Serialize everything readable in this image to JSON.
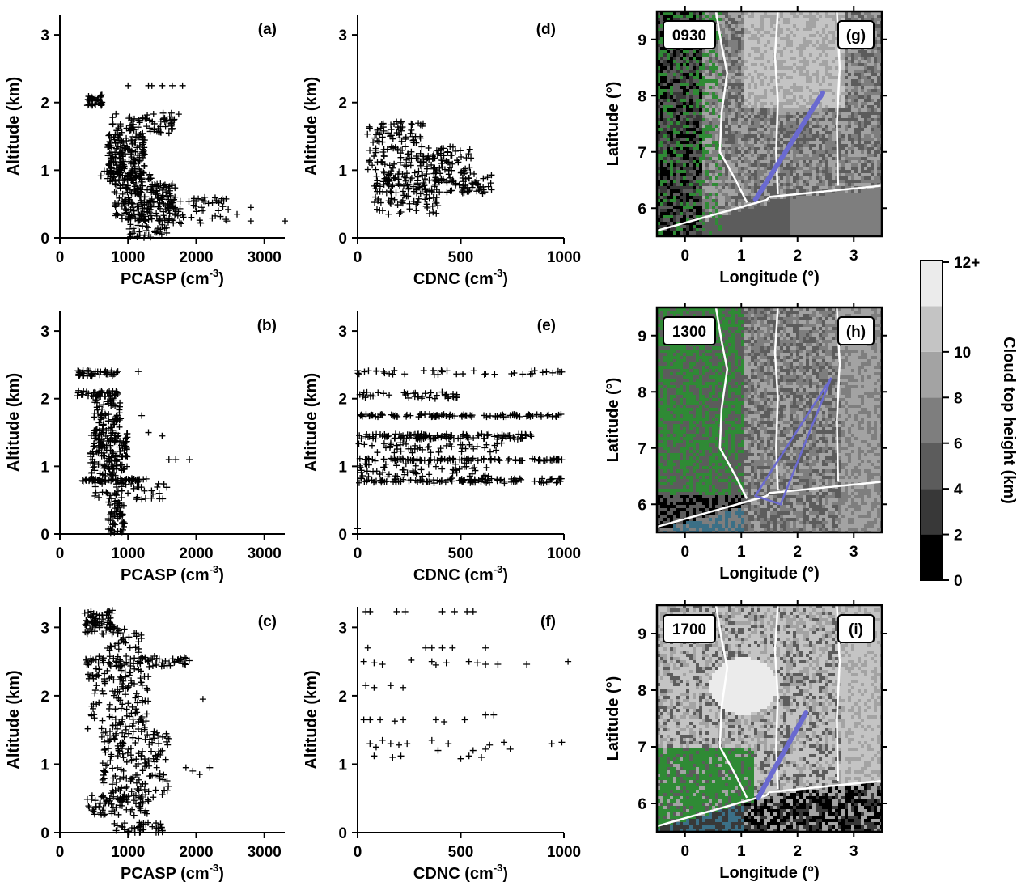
{
  "chart_data": [
    {
      "panel": "(a)",
      "type": "scatter",
      "xlabel": "PCASP (cm",
      "xlabel_sup": "-3",
      "ylabel": "Altitude (km)",
      "xlim": [
        0,
        3300
      ],
      "ylim": [
        0,
        3.3
      ],
      "xticks": [
        0,
        1000,
        2000,
        3000
      ],
      "yticks": [
        0,
        1,
        2,
        3
      ],
      "marker": "+",
      "clusters": [
        {
          "x": [
            400,
            620
          ],
          "y": [
            1.95,
            2.12
          ],
          "n": 35
        },
        {
          "x": [
            750,
            1750
          ],
          "y": [
            1.55,
            1.85
          ],
          "n": 70
        },
        {
          "x": [
            700,
            1250
          ],
          "y": [
            0.8,
            1.55
          ],
          "n": 200
        },
        {
          "x": [
            600,
            1350
          ],
          "y": [
            0.85,
            1.0
          ],
          "n": 40
        },
        {
          "x": [
            800,
            1700
          ],
          "y": [
            0.25,
            0.8
          ],
          "n": 210
        },
        {
          "x": [
            1300,
            2500
          ],
          "y": [
            0.2,
            0.6
          ],
          "n": 60
        },
        {
          "x": [
            1000,
            1600
          ],
          "y": [
            0.0,
            0.2
          ],
          "n": 35
        }
      ],
      "points": [
        {
          "x": 1000,
          "y": 2.25
        },
        {
          "x": 1300,
          "y": 2.25
        },
        {
          "x": 1350,
          "y": 2.25
        },
        {
          "x": 1500,
          "y": 2.25
        },
        {
          "x": 1650,
          "y": 2.25
        },
        {
          "x": 1800,
          "y": 2.25
        },
        {
          "x": 2800,
          "y": 0.45
        },
        {
          "x": 2800,
          "y": 0.25
        },
        {
          "x": 3300,
          "y": 0.25
        },
        {
          "x": 2450,
          "y": 0.25
        },
        {
          "x": 2600,
          "y": 0.35
        }
      ]
    },
    {
      "panel": "(b)",
      "type": "scatter",
      "xlabel": "PCASP (cm",
      "xlabel_sup": "-3",
      "ylabel": "Altitude (km)",
      "xlim": [
        0,
        3300
      ],
      "ylim": [
        0,
        3.3
      ],
      "xticks": [
        0,
        1000,
        2000,
        3000
      ],
      "yticks": [
        0,
        1,
        2,
        3
      ],
      "marker": "+",
      "clusters": [
        {
          "x": [
            250,
            850
          ],
          "y": [
            2.33,
            2.42
          ],
          "n": 45
        },
        {
          "x": [
            250,
            850
          ],
          "y": [
            2.03,
            2.12
          ],
          "n": 45
        },
        {
          "x": [
            500,
            900
          ],
          "y": [
            1.45,
            2.0
          ],
          "n": 70
        },
        {
          "x": [
            450,
            1000
          ],
          "y": [
            0.85,
            1.5
          ],
          "n": 150
        },
        {
          "x": [
            300,
            1300
          ],
          "y": [
            0.78,
            0.82
          ],
          "n": 60
        },
        {
          "x": [
            500,
            1600
          ],
          "y": [
            0.5,
            0.78
          ],
          "n": 50
        },
        {
          "x": [
            700,
            950
          ],
          "y": [
            0.0,
            0.5
          ],
          "n": 55
        }
      ],
      "points": [
        {
          "x": 1150,
          "y": 2.4
        },
        {
          "x": 1900,
          "y": 1.1
        },
        {
          "x": 1600,
          "y": 1.1
        },
        {
          "x": 1500,
          "y": 1.45
        },
        {
          "x": 1200,
          "y": 1.75
        },
        {
          "x": 1300,
          "y": 1.5
        },
        {
          "x": 1700,
          "y": 1.1
        }
      ]
    },
    {
      "panel": "(c)",
      "type": "scatter",
      "xlabel": "PCASP (cm",
      "xlabel_sup": "-3",
      "ylabel": "Altitude (km)",
      "xlim": [
        0,
        3300
      ],
      "ylim": [
        0,
        3.3
      ],
      "xticks": [
        0,
        1000,
        2000,
        3000
      ],
      "yticks": [
        0,
        1,
        2,
        3
      ],
      "marker": "+",
      "clusters": [
        {
          "x": [
            350,
            800
          ],
          "y": [
            2.9,
            3.25
          ],
          "n": 70
        },
        {
          "x": [
            700,
            1200
          ],
          "y": [
            2.6,
            3.0
          ],
          "n": 30
        },
        {
          "x": [
            300,
            1900
          ],
          "y": [
            2.42,
            2.58
          ],
          "n": 80
        },
        {
          "x": [
            400,
            1300
          ],
          "y": [
            1.5,
            2.4
          ],
          "n": 130
        },
        {
          "x": [
            600,
            1600
          ],
          "y": [
            0.5,
            1.5
          ],
          "n": 170
        },
        {
          "x": [
            400,
            1300
          ],
          "y": [
            0.25,
            0.55
          ],
          "n": 80
        },
        {
          "x": [
            800,
            1550
          ],
          "y": [
            0.0,
            0.15
          ],
          "n": 40
        }
      ],
      "points": [
        {
          "x": 2100,
          "y": 1.95
        },
        {
          "x": 2200,
          "y": 0.95
        },
        {
          "x": 2050,
          "y": 0.85
        },
        {
          "x": 1950,
          "y": 0.9
        },
        {
          "x": 1850,
          "y": 0.95
        },
        {
          "x": 1850,
          "y": 2.55
        }
      ]
    },
    {
      "panel": "(d)",
      "type": "scatter",
      "xlabel": "CDNC (cm",
      "xlabel_sup": "-3",
      "ylabel": "Altitude (km)",
      "xlim": [
        0,
        1000
      ],
      "ylim": [
        0,
        3.3
      ],
      "xticks": [
        0,
        500,
        1000
      ],
      "yticks": [
        0,
        1,
        2,
        3
      ],
      "marker": "+",
      "clusters": [
        {
          "x": [
            40,
            320
          ],
          "y": [
            1.4,
            1.72
          ],
          "n": 60
        },
        {
          "x": [
            50,
            550
          ],
          "y": [
            0.95,
            1.35
          ],
          "n": 130
        },
        {
          "x": [
            80,
            650
          ],
          "y": [
            0.65,
            0.95
          ],
          "n": 150
        },
        {
          "x": [
            80,
            400
          ],
          "y": [
            0.35,
            0.65
          ],
          "n": 45
        }
      ],
      "points": []
    },
    {
      "panel": "(e)",
      "type": "scatter",
      "xlabel": "CDNC (cm",
      "xlabel_sup": "-3",
      "ylabel": "Altitude (km)",
      "xlim": [
        0,
        1000
      ],
      "ylim": [
        0,
        3.3
      ],
      "xticks": [
        0,
        500,
        1000
      ],
      "yticks": [
        0,
        1,
        2,
        3
      ],
      "marker": "+",
      "clusters": [
        {
          "x": [
            0,
            1000
          ],
          "y": [
            2.35,
            2.42
          ],
          "n": 40
        },
        {
          "x": [
            0,
            500
          ],
          "y": [
            2.0,
            2.1
          ],
          "n": 40
        },
        {
          "x": [
            0,
            1000
          ],
          "y": [
            1.73,
            1.77
          ],
          "n": 90
        },
        {
          "x": [
            0,
            850
          ],
          "y": [
            1.4,
            1.48
          ],
          "n": 120
        },
        {
          "x": [
            0,
            700
          ],
          "y": [
            1.2,
            1.35
          ],
          "n": 50
        },
        {
          "x": [
            0,
            1000
          ],
          "y": [
            1.08,
            1.12
          ],
          "n": 100
        },
        {
          "x": [
            0,
            650
          ],
          "y": [
            0.82,
            1.05
          ],
          "n": 60
        },
        {
          "x": [
            0,
            1000
          ],
          "y": [
            0.75,
            0.82
          ],
          "n": 110
        }
      ],
      "points": [
        {
          "x": 0,
          "y": 0.08
        }
      ]
    },
    {
      "panel": "(f)",
      "type": "scatter",
      "xlabel": "CDNC (cm",
      "xlabel_sup": "-3",
      "ylabel": "Altitude (km)",
      "xlim": [
        0,
        1000
      ],
      "ylim": [
        0,
        3.3
      ],
      "xticks": [
        0,
        500,
        1000
      ],
      "yticks": [
        0,
        1,
        2,
        3
      ],
      "marker": "+",
      "points": [
        {
          "x": 40,
          "y": 3.23
        },
        {
          "x": 60,
          "y": 3.23
        },
        {
          "x": 190,
          "y": 3.23
        },
        {
          "x": 230,
          "y": 3.23
        },
        {
          "x": 410,
          "y": 3.23
        },
        {
          "x": 470,
          "y": 3.23
        },
        {
          "x": 530,
          "y": 3.23
        },
        {
          "x": 560,
          "y": 3.23
        },
        {
          "x": 50,
          "y": 2.7
        },
        {
          "x": 330,
          "y": 2.7
        },
        {
          "x": 360,
          "y": 2.7
        },
        {
          "x": 410,
          "y": 2.7
        },
        {
          "x": 460,
          "y": 2.7
        },
        {
          "x": 620,
          "y": 2.7
        },
        {
          "x": 30,
          "y": 2.5
        },
        {
          "x": 80,
          "y": 2.48
        },
        {
          "x": 120,
          "y": 2.46
        },
        {
          "x": 260,
          "y": 2.52
        },
        {
          "x": 360,
          "y": 2.5
        },
        {
          "x": 380,
          "y": 2.45
        },
        {
          "x": 430,
          "y": 2.48
        },
        {
          "x": 540,
          "y": 2.5
        },
        {
          "x": 580,
          "y": 2.48
        },
        {
          "x": 620,
          "y": 2.46
        },
        {
          "x": 680,
          "y": 2.46
        },
        {
          "x": 820,
          "y": 2.46
        },
        {
          "x": 1020,
          "y": 2.5
        },
        {
          "x": 40,
          "y": 2.15
        },
        {
          "x": 80,
          "y": 2.12
        },
        {
          "x": 160,
          "y": 2.15
        },
        {
          "x": 220,
          "y": 2.12
        },
        {
          "x": 30,
          "y": 1.65
        },
        {
          "x": 60,
          "y": 1.65
        },
        {
          "x": 110,
          "y": 1.65
        },
        {
          "x": 180,
          "y": 1.63
        },
        {
          "x": 220,
          "y": 1.65
        },
        {
          "x": 380,
          "y": 1.65
        },
        {
          "x": 420,
          "y": 1.62
        },
        {
          "x": 520,
          "y": 1.65
        },
        {
          "x": 620,
          "y": 1.72
        },
        {
          "x": 660,
          "y": 1.72
        },
        {
          "x": 60,
          "y": 1.3
        },
        {
          "x": 90,
          "y": 1.25
        },
        {
          "x": 120,
          "y": 1.35
        },
        {
          "x": 160,
          "y": 1.3
        },
        {
          "x": 200,
          "y": 1.28
        },
        {
          "x": 240,
          "y": 1.3
        },
        {
          "x": 360,
          "y": 1.35
        },
        {
          "x": 440,
          "y": 1.3
        },
        {
          "x": 560,
          "y": 1.2
        },
        {
          "x": 640,
          "y": 1.28
        },
        {
          "x": 710,
          "y": 1.32
        },
        {
          "x": 740,
          "y": 1.22
        },
        {
          "x": 940,
          "y": 1.3
        },
        {
          "x": 990,
          "y": 1.32
        },
        {
          "x": 80,
          "y": 1.12
        },
        {
          "x": 170,
          "y": 1.1
        },
        {
          "x": 210,
          "y": 1.12
        },
        {
          "x": 500,
          "y": 1.08
        },
        {
          "x": 540,
          "y": 1.12
        },
        {
          "x": 600,
          "y": 1.1
        },
        {
          "x": 620,
          "y": 1.22
        },
        {
          "x": 390,
          "y": 1.2
        }
      ]
    },
    {
      "panel": "(g)",
      "type": "heatmap",
      "time_label": "0930",
      "xlabel": "Longitude (°)",
      "ylabel": "Latitude (°)",
      "xlim": [
        -0.5,
        3.5
      ],
      "ylim": [
        5.5,
        9.5
      ],
      "xticks": [
        0,
        1,
        2,
        3
      ],
      "yticks": [
        6,
        7,
        8,
        9
      ],
      "flight_track": [
        [
          1.25,
          6.15
        ],
        [
          2.45,
          8.05
        ]
      ]
    },
    {
      "panel": "(h)",
      "type": "heatmap",
      "time_label": "1300",
      "xlabel": "Longitude (°)",
      "ylabel": "Latitude (°)",
      "xlim": [
        -0.5,
        3.5
      ],
      "ylim": [
        5.5,
        9.5
      ],
      "xticks": [
        0,
        1,
        2,
        3
      ],
      "yticks": [
        6,
        7,
        8,
        9
      ],
      "flight_track": [
        [
          1.25,
          6.15
        ],
        [
          2.6,
          8.25
        ],
        [
          1.7,
          6.0
        ],
        [
          1.25,
          6.15
        ]
      ]
    },
    {
      "panel": "(i)",
      "type": "heatmap",
      "time_label": "1700",
      "xlabel": "Longitude (°)",
      "ylabel": "Latitude (°)",
      "xlim": [
        -0.5,
        3.5
      ],
      "ylim": [
        5.5,
        9.5
      ],
      "xticks": [
        0,
        1,
        2,
        3
      ],
      "yticks": [
        6,
        7,
        8,
        9
      ],
      "flight_track": [
        [
          1.3,
          6.1
        ],
        [
          2.15,
          7.6
        ]
      ]
    }
  ],
  "colorbar": {
    "title": "Cloud top height (km)",
    "tick_labels": [
      "0",
      "2",
      "4",
      "6",
      "8",
      "10",
      "12+"
    ],
    "levels": [
      {
        "from": 0,
        "to": 2,
        "color": "#000000"
      },
      {
        "from": 2,
        "to": 4,
        "color": "#383838"
      },
      {
        "from": 4,
        "to": 6,
        "color": "#5c5c5c"
      },
      {
        "from": 6,
        "to": 8,
        "color": "#7e7e7e"
      },
      {
        "from": 8,
        "to": 10,
        "color": "#a3a3a3"
      },
      {
        "from": 10,
        "to": 12,
        "color": "#c4c4c4"
      },
      {
        "from": 12,
        "to": 14,
        "color": "#ebebeb"
      }
    ]
  },
  "colors": {
    "marker": "#000000",
    "vegetation": "#2f8a35",
    "water": "#3b6f86",
    "flight_track": "#6a6ad0",
    "borders": "#ffffff"
  }
}
